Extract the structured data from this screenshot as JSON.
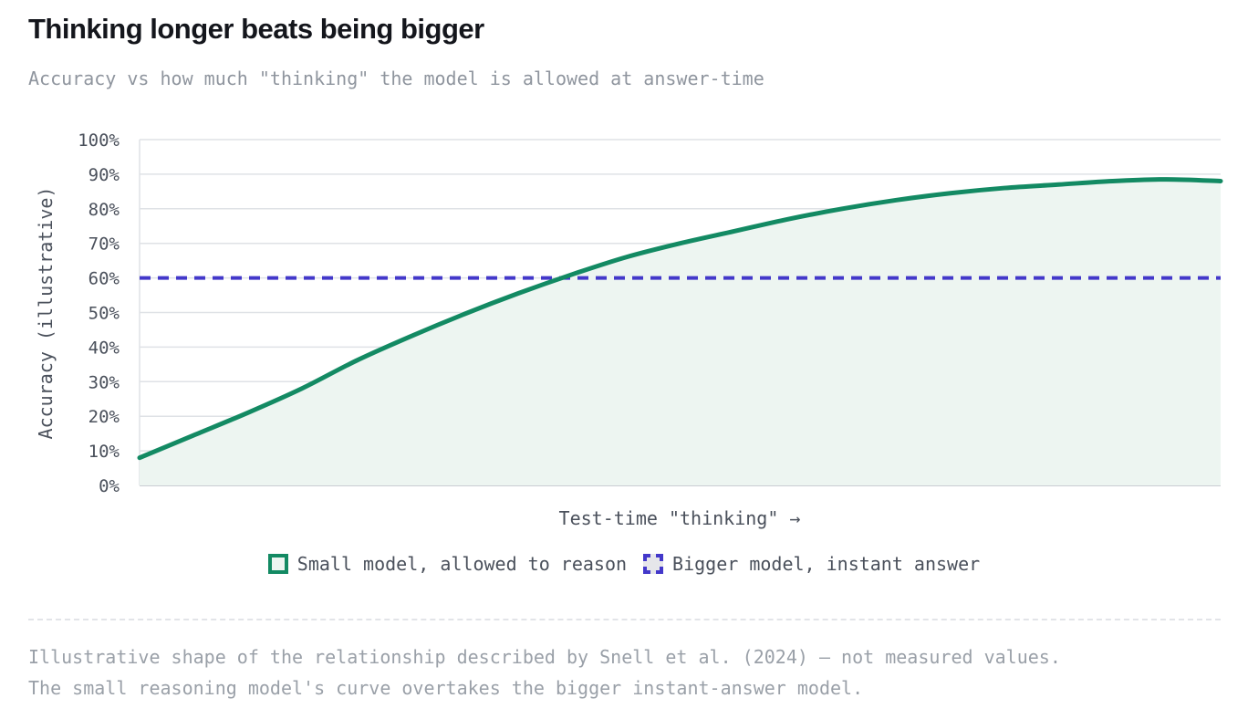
{
  "header": {
    "title": "Thinking longer beats being bigger",
    "subtitle": "Accuracy vs how much \"thinking\" the model is allowed at answer-time"
  },
  "legend": {
    "series_1": "Small model, allowed to reason",
    "series_2": "Bigger model, instant answer"
  },
  "footnote": {
    "line_1": "Illustrative shape of the relationship described by Snell et al. (2024) — not measured values.",
    "line_2": "The small reasoning model's curve overtakes the bigger instant-answer model."
  },
  "colors": {
    "small_model": "#138a63",
    "small_model_fill": "#edf5f1",
    "bigger_model": "#4338ca",
    "grid": "#dfe2e6",
    "tick_text": "#4a505b"
  },
  "chart_data": {
    "type": "line",
    "title": "Thinking longer beats being bigger",
    "xlabel": "Test-time \"thinking\" →",
    "ylabel": "Accuracy (illustrative)",
    "ylim": [
      0,
      100
    ],
    "yticks": [
      "0%",
      "10%",
      "20%",
      "30%",
      "40%",
      "50%",
      "60%",
      "70%",
      "80%",
      "90%",
      "100%"
    ],
    "xlim": [
      0,
      1
    ],
    "grid": true,
    "legend_position": "bottom",
    "series": [
      {
        "name": "Small model, allowed to reason",
        "style": "solid, filled area",
        "x": [
          0,
          0.05,
          0.1,
          0.15,
          0.2,
          0.25,
          0.3,
          0.35,
          0.4,
          0.45,
          0.5,
          0.55,
          0.6,
          0.65,
          0.7,
          0.75,
          0.8,
          0.85,
          0.9,
          0.95,
          1
        ],
        "y": [
          8,
          14.5,
          21,
          28,
          36,
          43,
          49.5,
          55.5,
          61,
          66,
          70,
          73.5,
          77,
          80,
          82.5,
          84.5,
          86,
          87,
          88,
          88.5,
          88
        ]
      },
      {
        "name": "Bigger model, instant answer",
        "style": "dashed",
        "x": [
          0,
          1
        ],
        "y": [
          60,
          60
        ]
      }
    ]
  }
}
